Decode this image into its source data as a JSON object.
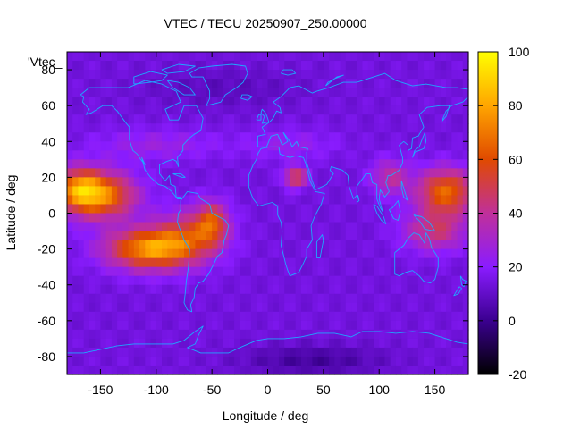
{
  "chart_data": {
    "type": "heatmap",
    "title": "VTEC / TECU 20250907_250.00000",
    "series_key": "'Vtec_",
    "xlabel": "Longitude / deg",
    "ylabel": "Latitude / deg",
    "xlim": [
      -180,
      180
    ],
    "ylim": [
      -90,
      90
    ],
    "x_ticks": [
      -150,
      -100,
      -50,
      0,
      50,
      100,
      150
    ],
    "y_ticks": [
      -80,
      -60,
      -40,
      -20,
      0,
      20,
      40,
      60,
      80
    ],
    "colorbar": {
      "range": [
        -20,
        100
      ],
      "ticks": [
        -20,
        0,
        20,
        40,
        60,
        80,
        100
      ],
      "palette": [
        "#000000",
        "#3b0090",
        "#8a1cff",
        "#c0309a",
        "#e04a00",
        "#ffa500",
        "#ffff00"
      ]
    },
    "grid": false,
    "coastlines": true,
    "coastline_color": "#1ea8ff",
    "features": [
      {
        "name": "background",
        "approx_tecu": 14
      },
      {
        "name": "americas-pacific-anomaly",
        "lon": [
          -180,
          -30
        ],
        "lat": [
          -30,
          25
        ],
        "peak_tecu": 92,
        "peak_at": [
          -110,
          -22
        ]
      },
      {
        "name": "west-pacific-crest",
        "lon": [
          90,
          180
        ],
        "lat": [
          -20,
          25
        ],
        "peak_tecu": 72,
        "peak_at": [
          155,
          10
        ]
      },
      {
        "name": "africa-spot",
        "lon": [
          15,
          35
        ],
        "lat": [
          15,
          25
        ],
        "peak_tecu": 55,
        "peak_at": [
          25,
          20
        ]
      },
      {
        "name": "antarctic-low",
        "lon": [
          -20,
          80
        ],
        "lat": [
          -90,
          -70
        ],
        "min_tecu": 2,
        "min_at": [
          40,
          -80
        ]
      }
    ]
  }
}
